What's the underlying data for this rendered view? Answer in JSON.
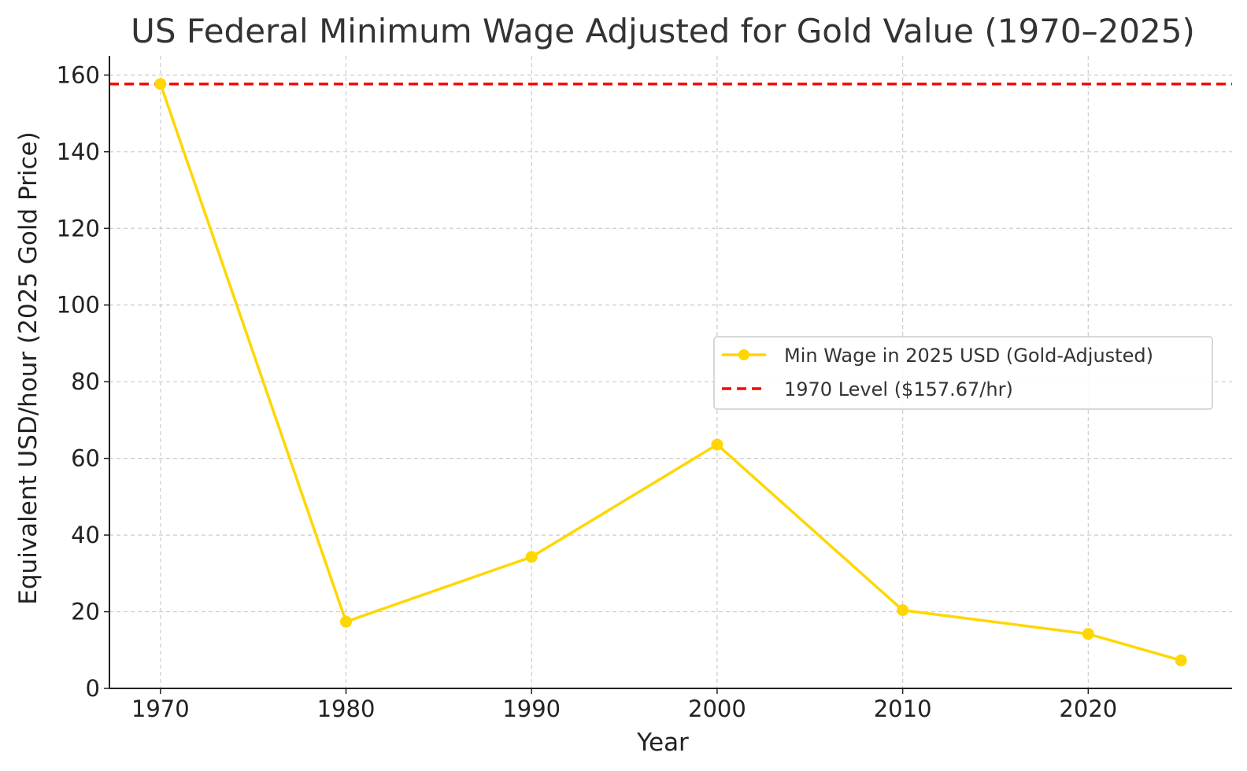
{
  "chart_data": {
    "type": "line",
    "title": "US Federal Minimum Wage Adjusted for Gold Value (1970–2025)",
    "xlabel": "Year",
    "ylabel": "Equivalent USD/hour (2025 Gold Price)",
    "xlim": [
      1967.25,
      2027.75
    ],
    "ylim": [
      0,
      165
    ],
    "x_ticks": [
      1970,
      1980,
      1990,
      2000,
      2010,
      2020
    ],
    "y_ticks": [
      0,
      20,
      40,
      60,
      80,
      100,
      120,
      140,
      160
    ],
    "grid": true,
    "legend_position": "center-right",
    "series": [
      {
        "name": "Min Wage in 2025 USD (Gold-Adjusted)",
        "color": "#FFD700",
        "style": "solid-with-markers",
        "x": [
          1970,
          1980,
          1990,
          2000,
          2010,
          2020,
          2025
        ],
        "values": [
          157.67,
          17.4,
          34.3,
          63.6,
          20.4,
          14.2,
          7.3
        ]
      }
    ],
    "reference_lines": [
      {
        "name": "1970 Level ($157.67/hr)",
        "color": "#FF0000",
        "style": "dashed",
        "value": 157.67
      }
    ]
  }
}
